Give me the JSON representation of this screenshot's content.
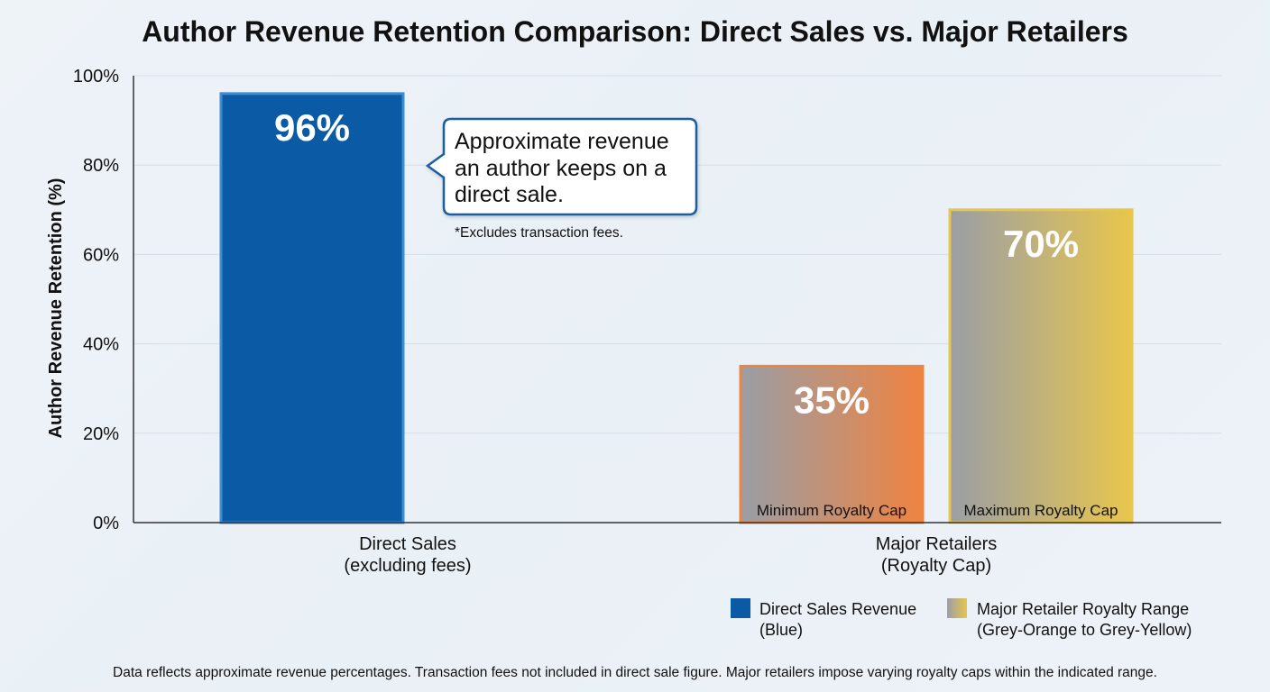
{
  "chart_data": {
    "type": "bar",
    "title": "Author Revenue Retention Comparison: Direct Sales vs. Major Retailers",
    "ylabel": "Author Revenue Retention (%)",
    "xlabel": "",
    "ylim": [
      0,
      100
    ],
    "yticks": [
      0,
      20,
      40,
      60,
      80,
      100
    ],
    "ytick_suffix": "%",
    "grid": true,
    "categories": [
      {
        "label_lines": [
          "Direct Sales",
          "(excluding fees)"
        ],
        "bars": [
          {
            "value": 96,
            "label": "96%",
            "sublabel": "",
            "style": "blue"
          }
        ]
      },
      {
        "label_lines": [
          "Major Retailers",
          "(Royalty Cap)"
        ],
        "bars": [
          {
            "value": 35,
            "label": "35%",
            "sublabel": "Minimum Royalty Cap",
            "style": "orange"
          },
          {
            "value": 70,
            "label": "70%",
            "sublabel": "Maximum Royalty Cap",
            "style": "yellow"
          }
        ]
      }
    ],
    "annotation": {
      "lines": [
        "Approximate revenue",
        "an author keeps on a",
        "direct sale."
      ],
      "note": "*Excludes transaction fees."
    },
    "legend": {
      "placement": "bottom-right",
      "items": [
        {
          "lines": [
            "Direct Sales Revenue",
            "(Blue)"
          ],
          "style": "blue"
        },
        {
          "lines": [
            "Major Retailer Royalty Range",
            "(Grey-Orange to Grey-Yellow)"
          ],
          "style": "gradient"
        }
      ]
    },
    "colors": {
      "blue": "#0a5aa6",
      "blue_edge": "#3f8bd0",
      "grey": "#9a9ea6",
      "orange": "#ef8340",
      "yellow": "#e8c64c",
      "callout_border": "#1b5f9e"
    }
  },
  "footnote": "Data reflects approximate revenue percentages. Transaction fees not included in direct sale figure. Major retailers impose varying royalty caps within the indicated range."
}
